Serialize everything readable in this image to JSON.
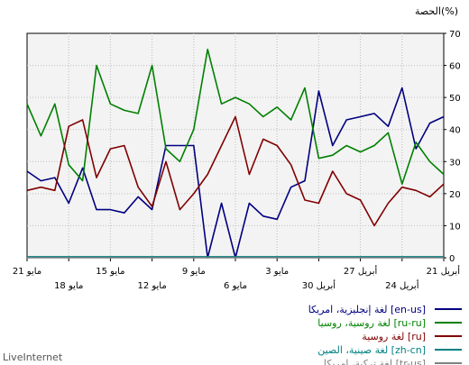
{
  "branding": {
    "text": "LiveInternet"
  },
  "chart_data": {
    "type": "line",
    "title": "الحصة(%)",
    "xlabel": "",
    "ylabel": "",
    "ylim": [
      0,
      70
    ],
    "y_ticks": [
      0,
      10,
      20,
      30,
      40,
      50,
      60,
      70
    ],
    "grid": true,
    "x_direction": "right-to-left",
    "x_labels_row1": [
      "21 أبريل",
      "27 أبريل",
      "3 مايو",
      "9 مايو",
      "15 مايو",
      "21 مايو"
    ],
    "x_labels_row2": [
      "24 أبريل",
      "30 أبريل",
      "6 مايو",
      "12 مايو",
      "18 مايو"
    ],
    "x": [
      "21 أبريل",
      "22 أبريل",
      "23 أبريل",
      "24 أبريل",
      "25 أبريل",
      "26 أبريل",
      "27 أبريل",
      "28 أبريل",
      "29 أبريل",
      "30 أبريل",
      "1 مايو",
      "2 مايو",
      "3 مايو",
      "4 مايو",
      "5 مايو",
      "6 مايو",
      "7 مايو",
      "8 مايو",
      "9 مايو",
      "10 مايو",
      "11 مايو",
      "12 مايو",
      "13 مايو",
      "14 مايو",
      "15 مايو",
      "16 مايو",
      "17 مايو",
      "18 مايو",
      "19 مايو",
      "20 مايو",
      "21 مايو"
    ],
    "series": [
      {
        "name": "لغة إنجليزية، امريكا [en-us]",
        "color": "#000080",
        "values": [
          44,
          42,
          34,
          53,
          41,
          45,
          44,
          43,
          35,
          52,
          24,
          22,
          12,
          13,
          17,
          0,
          17,
          0,
          35,
          35,
          35,
          15,
          19,
          14,
          15,
          15,
          28,
          17,
          25,
          24,
          27
        ]
      },
      {
        "name": "لغة روسية، روسيا [ru-ru]",
        "color": "#008000",
        "values": [
          26,
          30,
          36,
          23,
          39,
          35,
          33,
          35,
          32,
          31,
          53,
          43,
          47,
          44,
          48,
          50,
          48,
          65,
          40,
          30,
          34,
          60,
          45,
          46,
          48,
          60,
          24,
          29,
          48,
          38,
          48
        ]
      },
      {
        "name": "لغة روسية [ru]",
        "color": "#800000",
        "values": [
          23,
          19,
          21,
          22,
          17,
          10,
          18,
          20,
          27,
          17,
          18,
          29,
          35,
          37,
          26,
          44,
          35,
          26,
          20,
          15,
          30,
          16,
          22,
          35,
          34,
          25,
          43,
          41,
          21,
          22,
          21
        ]
      },
      {
        "name": "لغة صينية، الصين [zh-cn]",
        "color": "#008080",
        "values": [
          0.3,
          0.3,
          0.3,
          0.3,
          0.3,
          0.3,
          0.3,
          0.3,
          0.3,
          0.3,
          0.3,
          0.3,
          0.3,
          0.3,
          0.3,
          0.3,
          0.3,
          0.3,
          0.3,
          0.3,
          0.3,
          0.3,
          0.3,
          0.3,
          0.3,
          0.3,
          0.3,
          0.3,
          0.3,
          0.3,
          0.3
        ]
      },
      {
        "name": "لغة تركية، امريكا [tr-us]",
        "color": "#808080",
        "values": [
          0,
          0,
          0,
          0,
          0,
          0,
          0,
          0,
          0,
          0,
          0,
          0,
          0,
          0,
          0,
          0,
          0,
          0,
          0,
          0,
          0,
          0,
          0,
          0,
          0,
          0,
          0,
          0,
          0,
          0,
          0
        ]
      }
    ]
  }
}
